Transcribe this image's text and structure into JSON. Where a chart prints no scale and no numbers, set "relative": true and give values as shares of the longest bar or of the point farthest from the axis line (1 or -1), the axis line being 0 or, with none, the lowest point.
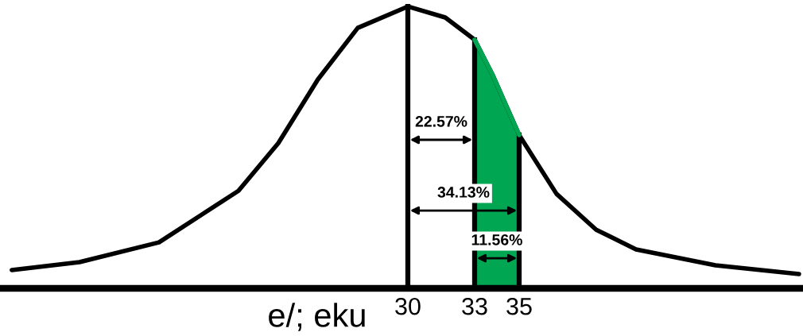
{
  "chart_data": {
    "type": "line",
    "relative": true,
    "xlabel": "e/; eku",
    "x": [
      12.21,
      15.25,
      18.82,
      22.39,
      24.18,
      25.96,
      27.75,
      30,
      31.68,
      33,
      33.82,
      35,
      36.68,
      38.46,
      40.25,
      43.82,
      47.57
    ],
    "series": [
      {
        "color": "#000000",
        "values": [
          0.065,
          0.093,
          0.163,
          0.346,
          0.515,
          0.741,
          0.924,
          1,
          0.961,
          0.882,
          0.755,
          0.544,
          0.335,
          0.208,
          0.138,
          0.082,
          0.051
        ]
      },
      {
        "type": "area",
        "color": "#00a651",
        "x": [
          33,
          33.82,
          35
        ],
        "values": [
          0.882,
          0.755,
          0.544
        ]
      }
    ],
    "xlim": [
      11.68,
      47.75
    ],
    "xticks": [
      30,
      33,
      35
    ],
    "ref_lines": [
      {
        "axis": "x",
        "value": 30,
        "color": "#000000"
      },
      {
        "axis": "x",
        "value": 33,
        "color": "#000000"
      },
      {
        "axis": "x",
        "value": 35,
        "color": "#000000"
      }
    ],
    "annotations": [
      "22.57%",
      "34.13%",
      "11.56%"
    ],
    "grid": false,
    "marker": "none",
    "line_style": "solid"
  }
}
